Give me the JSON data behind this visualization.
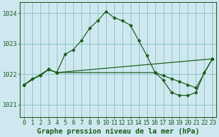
{
  "title": "Graphe pression niveau de la mer (hPa)",
  "bg_color": "#cfe8f0",
  "plot_bg_color": "#cfe8f0",
  "grid_color": "#7fbfbf",
  "line_color": "#1a5c1a",
  "xlim": [
    -0.5,
    23.5
  ],
  "ylim": [
    1020.6,
    1024.35
  ],
  "yticks": [
    1021,
    1022,
    1023,
    1024
  ],
  "xticks": [
    0,
    1,
    2,
    3,
    4,
    5,
    6,
    7,
    8,
    9,
    10,
    11,
    12,
    13,
    14,
    15,
    16,
    17,
    18,
    19,
    20,
    21,
    22,
    23
  ],
  "series1_x": [
    0,
    1,
    2,
    3,
    4,
    5,
    6,
    7,
    8,
    9,
    10,
    11,
    12,
    13,
    14,
    15,
    16,
    17,
    18,
    19,
    20,
    21,
    22,
    23
  ],
  "series1_y": [
    1021.65,
    1021.85,
    1021.95,
    1022.15,
    1022.05,
    1022.65,
    1022.8,
    1023.1,
    1023.5,
    1023.75,
    1024.05,
    1023.85,
    1023.75,
    1023.6,
    1023.1,
    1022.6,
    1022.05,
    1021.8,
    1021.4,
    1021.3,
    1021.3,
    1021.4,
    1022.05,
    1022.5
  ],
  "series2_x": [
    0,
    3,
    4,
    16,
    17,
    18,
    19,
    20,
    21,
    23
  ],
  "series2_y": [
    1021.65,
    1022.15,
    1022.05,
    1022.05,
    1021.95,
    1021.85,
    1021.75,
    1021.65,
    1021.55,
    1022.5
  ],
  "series3_x": [
    0,
    3,
    4,
    23
  ],
  "series3_y": [
    1021.65,
    1022.15,
    1022.05,
    1022.5
  ],
  "title_color": "#1a5c1a",
  "title_fontsize": 7.5,
  "tick_fontsize": 6.5,
  "markersize": 2.5,
  "linewidth": 0.9
}
